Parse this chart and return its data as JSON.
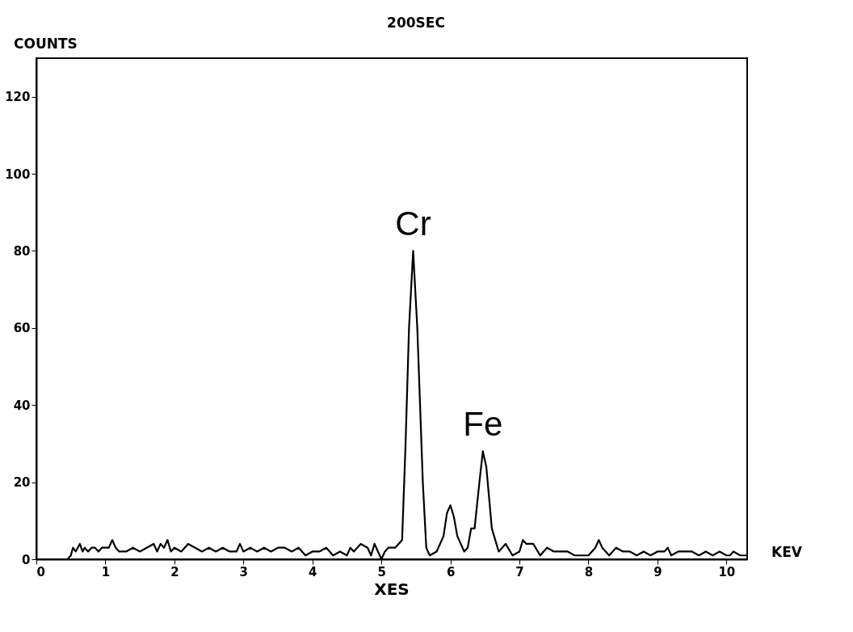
{
  "chart_data": {
    "type": "line",
    "title": "200SEC",
    "ylabel": "COUNTS",
    "xlabel": "XES",
    "annotations": [
      "KEV",
      {
        "text": "Cr",
        "x": 5.46,
        "y": 80
      },
      {
        "text": "Fe",
        "x": 6.47,
        "y": 28
      }
    ],
    "series": [
      {
        "color": "#000000",
        "x": [
          0,
          0.45,
          0.5,
          0.53,
          0.57,
          0.6,
          0.63,
          0.67,
          0.7,
          0.75,
          0.8,
          0.85,
          0.9,
          0.95,
          1.0,
          1.05,
          1.1,
          1.15,
          1.2,
          1.3,
          1.4,
          1.5,
          1.6,
          1.7,
          1.75,
          1.8,
          1.85,
          1.9,
          1.95,
          2.0,
          2.1,
          2.2,
          2.3,
          2.4,
          2.5,
          2.6,
          2.7,
          2.8,
          2.9,
          2.95,
          3.0,
          3.1,
          3.2,
          3.3,
          3.4,
          3.5,
          3.6,
          3.7,
          3.8,
          3.9,
          4.0,
          4.1,
          4.2,
          4.3,
          4.4,
          4.5,
          4.55,
          4.6,
          4.7,
          4.8,
          4.85,
          4.9,
          4.95,
          5.0,
          5.05,
          5.1,
          5.2,
          5.3,
          5.35,
          5.4,
          5.46,
          5.52,
          5.6,
          5.65,
          5.7,
          5.8,
          5.9,
          5.95,
          6.0,
          6.05,
          6.1,
          6.2,
          6.25,
          6.3,
          6.35,
          6.42,
          6.47,
          6.52,
          6.6,
          6.7,
          6.8,
          6.9,
          7.0,
          7.05,
          7.1,
          7.2,
          7.3,
          7.4,
          7.5,
          7.6,
          7.7,
          7.8,
          7.9,
          8.0,
          8.1,
          8.15,
          8.2,
          8.3,
          8.4,
          8.5,
          8.6,
          8.7,
          8.8,
          8.9,
          9.0,
          9.1,
          9.15,
          9.2,
          9.3,
          9.4,
          9.5,
          9.6,
          9.7,
          9.8,
          9.9,
          10.0,
          10.05,
          10.1,
          10.2,
          10.3
        ],
        "values": [
          0,
          0,
          1,
          3,
          2,
          3,
          4,
          2,
          3,
          2,
          3,
          3,
          2,
          3,
          3,
          3,
          5,
          3,
          2,
          2,
          3,
          2,
          3,
          4,
          2,
          4,
          3,
          5,
          2,
          3,
          2,
          4,
          3,
          2,
          3,
          2,
          3,
          2,
          2,
          4,
          2,
          3,
          2,
          3,
          2,
          3,
          3,
          2,
          3,
          1,
          2,
          2,
          3,
          1,
          2,
          1,
          3,
          2,
          4,
          3,
          1,
          4,
          2,
          0,
          2,
          3,
          3,
          5,
          30,
          60,
          80,
          60,
          20,
          3,
          1,
          2,
          6,
          12,
          14,
          11,
          6,
          2,
          3,
          8,
          8,
          20,
          28,
          24,
          8,
          2,
          4,
          1,
          2,
          5,
          4,
          4,
          1,
          3,
          2,
          2,
          2,
          1,
          1,
          1,
          3,
          5,
          3,
          1,
          3,
          2,
          2,
          1,
          2,
          1,
          2,
          2,
          3,
          1,
          2,
          2,
          2,
          1,
          2,
          1,
          2,
          1,
          1,
          2,
          1,
          1
        ],
        "line_style": "solid"
      }
    ],
    "xlim": [
      0,
      10.3
    ],
    "xticks": [
      0,
      1,
      2,
      3,
      4,
      5,
      6,
      7,
      8,
      9,
      10
    ],
    "ylim": [
      0,
      130
    ],
    "yticks": [
      0,
      20,
      40,
      60,
      80,
      100,
      120
    ],
    "grid": false,
    "marker": "none"
  }
}
